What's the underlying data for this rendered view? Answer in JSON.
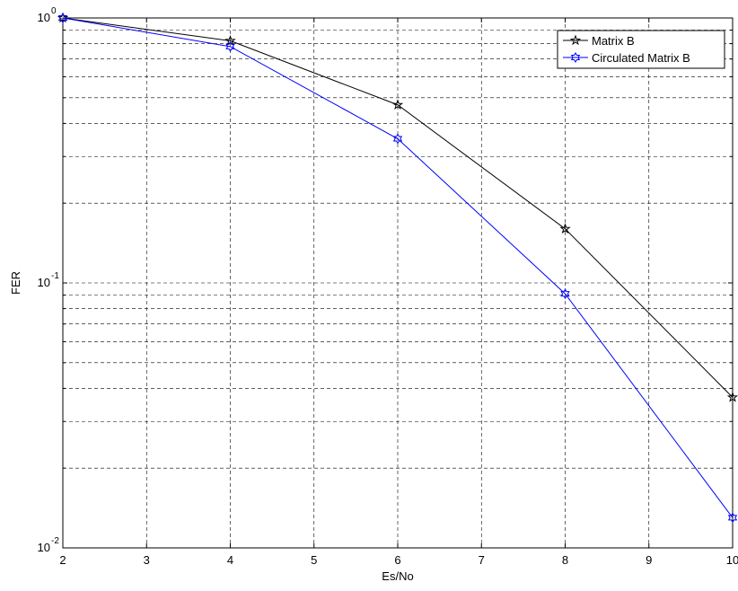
{
  "chart_data": {
    "type": "line",
    "title": "",
    "xlabel": "Es/No",
    "ylabel": "FER",
    "xlim": [
      2,
      10
    ],
    "ylim": [
      0.01,
      1
    ],
    "yscale": "log",
    "grid": true,
    "grid_style": "dashed",
    "legend_position": "top-right",
    "x_ticks": [
      "2",
      "3",
      "4",
      "5",
      "6",
      "7",
      "8",
      "9",
      "10"
    ],
    "y_ticks": [
      {
        "base": "10",
        "exp": "-2",
        "value": 0.01
      },
      {
        "base": "10",
        "exp": "-1",
        "value": 0.1
      },
      {
        "base": "10",
        "exp": "0",
        "value": 1
      }
    ],
    "series": [
      {
        "name": "Matrix B",
        "color": "#000000",
        "marker": "star",
        "x": [
          2,
          4,
          6,
          8,
          10
        ],
        "y": [
          1.0,
          0.82,
          0.47,
          0.16,
          0.037
        ]
      },
      {
        "name": "Circulated Matrix B",
        "color": "#0000ff",
        "marker": "hexagram",
        "x": [
          2,
          4,
          6,
          8,
          10
        ],
        "y": [
          1.0,
          0.78,
          0.35,
          0.091,
          0.013
        ]
      }
    ]
  }
}
